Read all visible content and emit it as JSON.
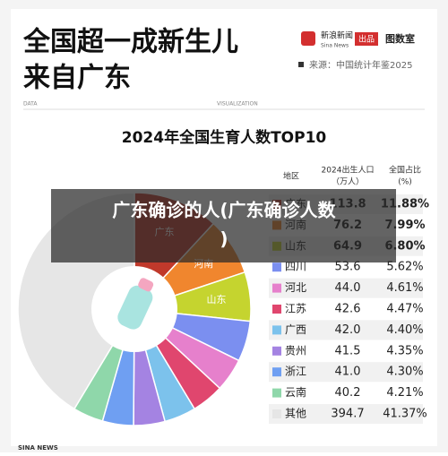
{
  "header": {
    "title_lines": [
      "全国超一成新生儿",
      "来自广东"
    ],
    "brand": "新浪新闻",
    "brand_en": "Sina News",
    "produced": "出品",
    "studio": "图数室",
    "source": "来源：中国统计年鉴2025",
    "data_tag": "DATA",
    "vis_tag": "VISUALIZATION"
  },
  "chart_data": {
    "type": "pie",
    "title": "2024年全国生育人数TOP10",
    "columns": [
      [
        "地区"
      ],
      [
        "2024出生人口",
        "（万人）"
      ],
      [
        "全国占比",
        "(%)"
      ]
    ],
    "categories": [
      "广东",
      "河南",
      "山东",
      "四川",
      "河北",
      "江苏",
      "广西",
      "贵州",
      "浙江",
      "云南",
      "其他"
    ],
    "births": [
      "113.8",
      "76.2",
      "64.9",
      "53.6",
      "44.0",
      "42.6",
      "42.0",
      "41.5",
      "41.0",
      "40.2",
      "394.7"
    ],
    "values": [
      11.88,
      7.99,
      6.8,
      5.62,
      4.61,
      4.47,
      4.4,
      4.35,
      4.3,
      4.21,
      41.37
    ],
    "value_labels": [
      "11.88%",
      "7.99%",
      "6.80%",
      "5.62%",
      "4.61%",
      "4.47%",
      "4.40%",
      "4.35%",
      "4.30%",
      "4.21%",
      "41.37%"
    ],
    "colors": [
      "#c0392b",
      "#f0862e",
      "#c5d42f",
      "#7b8ff0",
      "#e680cc",
      "#e0466e",
      "#7cc2ec",
      "#a483e2",
      "#6f9ff2",
      "#8fd7aa",
      "#e6e6e6"
    ],
    "wedge_labels": [
      "广东",
      "河南",
      "山东"
    ]
  },
  "footer": "SINA NEWS",
  "overlay": [
    "广东确诊的人(广东确诊人数",
    ")"
  ]
}
